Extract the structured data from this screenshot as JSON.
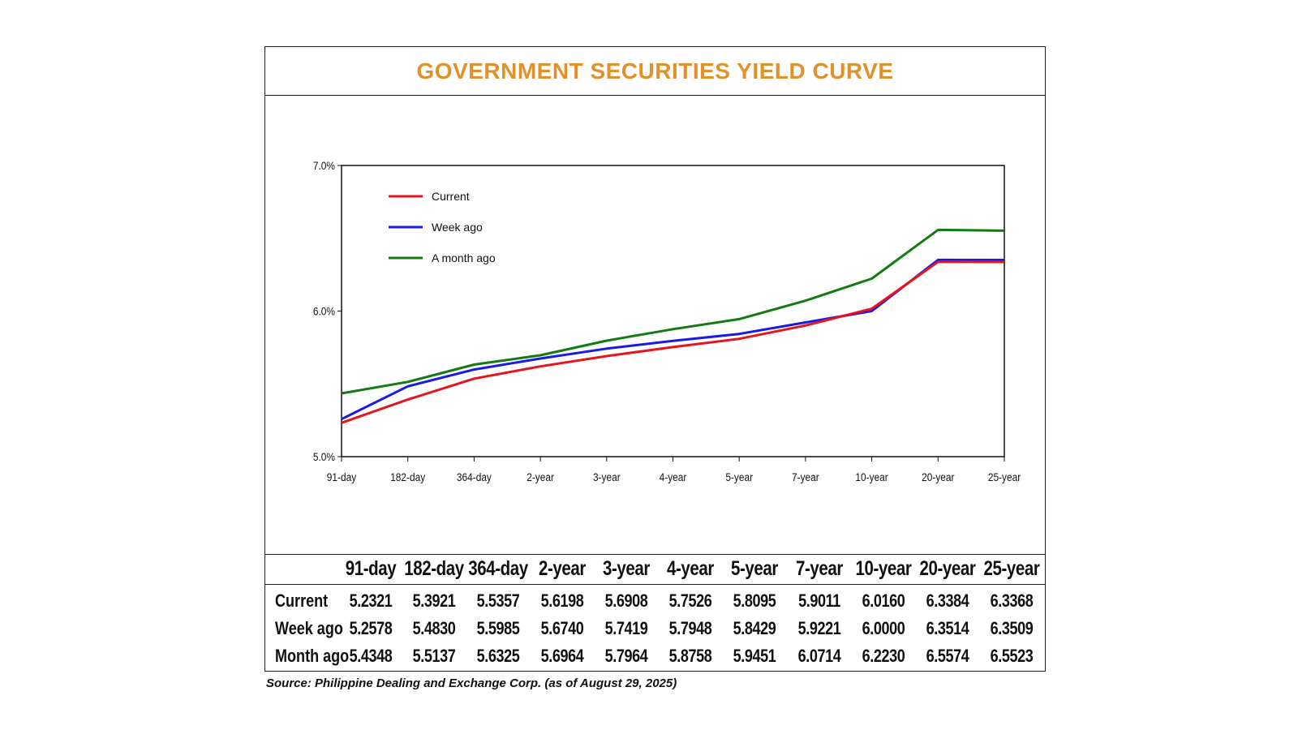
{
  "title": "GOVERNMENT SECURITIES YIELD CURVE",
  "source": "Source: Philippine Dealing and Exchange Corp. (as of August 29, 2025)",
  "chart_data": {
    "type": "line",
    "categories": [
      "91-day",
      "182-day",
      "364-day",
      "2-year",
      "3-year",
      "4-year",
      "5-year",
      "7-year",
      "10-year",
      "20-year",
      "25-year"
    ],
    "yticks": [
      "7.0%",
      "6.0%",
      "5.0%"
    ],
    "ylim": [
      5.0,
      7.0
    ],
    "legend_position": "top-left",
    "series": [
      {
        "name": "Current",
        "color": "#e8141c",
        "values": [
          5.2321,
          5.3921,
          5.5357,
          5.6198,
          5.6908,
          5.7526,
          5.8095,
          5.9011,
          6.016,
          6.3384,
          6.3368
        ]
      },
      {
        "name": "Week ago",
        "color": "#1a1ae6",
        "values": [
          5.2578,
          5.483,
          5.5985,
          5.674,
          5.7419,
          5.7948,
          5.8429,
          5.9221,
          6.0,
          6.3514,
          6.3509
        ]
      },
      {
        "name": "A month ago",
        "color": "#117a11",
        "values": [
          5.4348,
          5.5137,
          5.6325,
          5.6964,
          5.7964,
          5.8758,
          5.9451,
          6.0714,
          6.223,
          6.5574,
          6.5523
        ]
      }
    ]
  },
  "table": {
    "headers": [
      "91-day",
      "182-day",
      "364-day",
      "2-year",
      "3-year",
      "4-year",
      "5-year",
      "7-year",
      "10-year",
      "20-year",
      "25-year"
    ],
    "rows": [
      {
        "label": "Current",
        "values": [
          "5.2321",
          "5.3921",
          "5.5357",
          "5.6198",
          "5.6908",
          "5.7526",
          "5.8095",
          "5.9011",
          "6.0160",
          "6.3384",
          "6.3368"
        ]
      },
      {
        "label": "Week ago",
        "values": [
          "5.2578",
          "5.4830",
          "5.5985",
          "5.6740",
          "5.7419",
          "5.7948",
          "5.8429",
          "5.9221",
          "6.0000",
          "6.3514",
          "6.3509"
        ]
      },
      {
        "label": "Month ago",
        "values": [
          "5.4348",
          "5.5137",
          "5.6325",
          "5.6964",
          "5.7964",
          "5.8758",
          "5.9451",
          "6.0714",
          "6.2230",
          "6.5574",
          "6.5523"
        ]
      }
    ]
  }
}
